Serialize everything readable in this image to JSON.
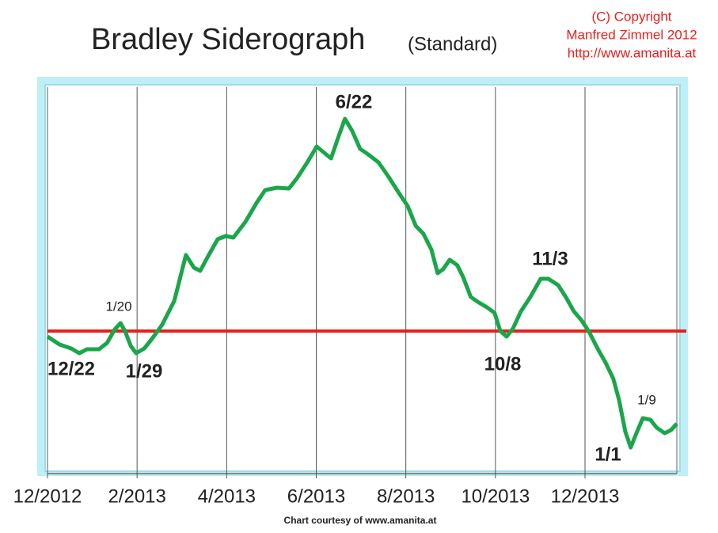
{
  "chart_data": {
    "type": "line",
    "title": "Bradley Siderograph",
    "subtitle": "(Standard)",
    "copyright": [
      "(C) Copyright",
      "Manfred Zimmel  2012",
      "http://www.amanita.at"
    ],
    "footer": "Chart courtesy of www.amanita.at",
    "annotations": [
      "12/22",
      "1/20",
      "1/29",
      "6/22",
      "10/8",
      "11/3",
      "1/1",
      "1/9"
    ],
    "x": [
      0,
      0.27,
      0.53,
      0.71,
      0.88,
      1.15,
      1.33,
      1.5,
      1.63,
      1.73,
      1.86,
      1.98,
      2.16,
      2.33,
      2.56,
      2.83,
      3.09,
      3.27,
      3.41,
      3.57,
      3.8,
      3.98,
      4.15,
      4.42,
      4.68,
      4.86,
      5.12,
      5.39,
      5.57,
      5.8,
      6.01,
      6.18,
      6.33,
      6.5,
      6.64,
      6.8,
      6.98,
      7.16,
      7.39,
      7.6,
      7.86,
      8.04,
      8.22,
      8.39,
      8.57,
      8.71,
      8.83,
      8.98,
      9.15,
      9.28,
      9.45,
      9.63,
      9.81,
      9.98,
      10.11,
      10.25,
      10.39,
      10.57,
      10.78,
      11.01,
      11.18,
      11.4,
      11.57,
      11.75,
      11.93,
      12.1,
      12.28,
      12.46,
      12.63,
      12.76,
      12.9,
      13.02,
      13.14,
      13.29,
      13.46,
      13.6,
      13.78,
      13.92,
      14.05
    ],
    "series": [
      {
        "color": "#1aa64a",
        "values": [
          -7,
          -17,
          -22,
          -28,
          -23,
          -23,
          -15,
          2,
          10,
          0,
          -19,
          -28,
          -22,
          -10,
          8,
          38,
          96,
          80,
          76,
          93,
          116,
          120,
          118,
          138,
          163,
          178,
          181,
          180,
          193,
          213,
          233,
          225,
          218,
          246,
          268,
          253,
          230,
          223,
          213,
          196,
          173,
          158,
          133,
          123,
          103,
          73,
          78,
          90,
          83,
          68,
          43,
          36,
          30,
          23,
          0,
          -7,
          3,
          25,
          43,
          66,
          66,
          58,
          43,
          25,
          13,
          -2,
          -22,
          -40,
          -60,
          -87,
          -127,
          -147,
          -130,
          -110,
          -112,
          -122,
          -129,
          -125,
          -117
        ]
      }
    ],
    "reference_line": {
      "value": 0,
      "color": "#e8201c"
    },
    "xlim": [
      0,
      14.05
    ],
    "xticks": [
      {
        "value": 0,
        "label": "12/2012"
      },
      {
        "value": 2,
        "label": "2/2013"
      },
      {
        "value": 4,
        "label": "4/2013"
      },
      {
        "value": 6,
        "label": "6/2013"
      },
      {
        "value": 8,
        "label": "8/2013"
      },
      {
        "value": 10,
        "label": "10/2013"
      },
      {
        "value": 12,
        "label": "12/2013"
      }
    ],
    "ylim": [
      -180,
      308
    ],
    "grid": true
  }
}
